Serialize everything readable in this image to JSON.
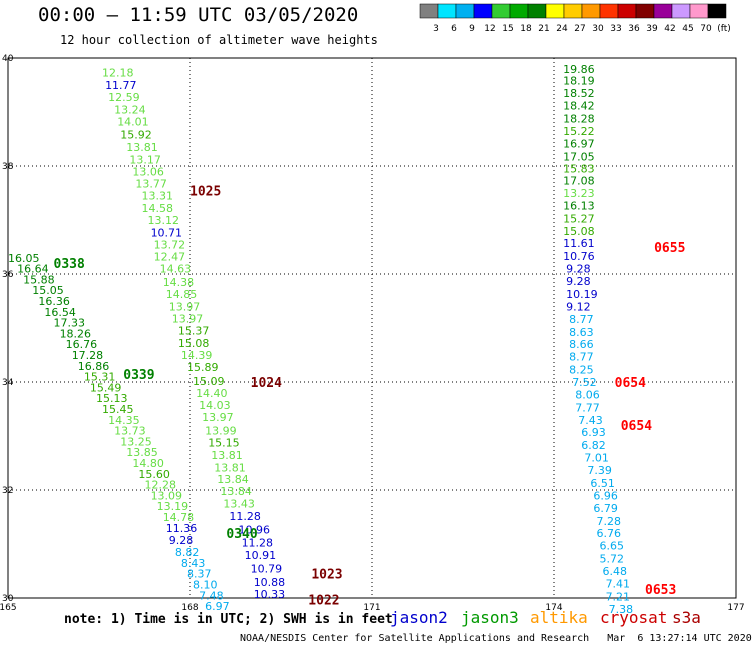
{
  "title": "00:00 – 11:59 UTC 03/05/2020",
  "subtitle": "12 hour collection of altimeter wave heights",
  "colorbar": {
    "colors": [
      "#808080",
      "#00e5ff",
      "#00b0f0",
      "#0000ff",
      "#33cc33",
      "#00aa00",
      "#008000",
      "#ffff00",
      "#ffcc00",
      "#ff9900",
      "#ff3300",
      "#cc0000",
      "#800000",
      "#990099",
      "#cc99ff",
      "#ff99cc",
      "#000000"
    ],
    "labels": [
      "3",
      "6",
      "9",
      "12",
      "15",
      "18",
      "21",
      "24",
      "27",
      "30",
      "33",
      "36",
      "39",
      "42",
      "45",
      "70",
      "(ft)"
    ]
  },
  "note": "note: 1) Time is in UTC; 2) SWH is in feet",
  "satellites": [
    {
      "name": "jason2",
      "color": "#0000cc"
    },
    {
      "name": "jason3",
      "color": "#009900"
    },
    {
      "name": "altika",
      "color": "#ff9900"
    },
    {
      "name": "cryosat",
      "color": "#cc0000"
    },
    {
      "name": "s3a",
      "color": "#aa0000"
    }
  ],
  "credit": "NOAA/NESDIS Center for Satellite Applications and Research   Mar  6 13:27:14 UTC 2020",
  "chart_data": {
    "type": "scatter",
    "xlim": [
      165,
      177
    ],
    "ylim": [
      30,
      40
    ],
    "x_ticks": [
      "165",
      "168",
      "171",
      "174",
      "177"
    ],
    "y_ticks": [
      "30",
      "32",
      "34",
      "36",
      "38",
      "40"
    ],
    "grid": true,
    "time_labels": [
      {
        "text": "1025",
        "lon": 168.0,
        "lat": 37.55,
        "color": "#7a0000"
      },
      {
        "text": "0338",
        "lon": 165.75,
        "lat": 36.2,
        "color": "#008000"
      },
      {
        "text": "0339",
        "lon": 166.9,
        "lat": 34.15,
        "color": "#008000"
      },
      {
        "text": "1024",
        "lon": 169.0,
        "lat": 34.0,
        "color": "#7a0000"
      },
      {
        "text": "0340",
        "lon": 168.6,
        "lat": 31.2,
        "color": "#008000"
      },
      {
        "text": "1023",
        "lon": 170.0,
        "lat": 30.45,
        "color": "#7a0000"
      },
      {
        "text": "1022",
        "lon": 169.95,
        "lat": 29.97,
        "color": "#7a0000"
      },
      {
        "text": "0655",
        "lon": 175.65,
        "lat": 36.5,
        "color": "#ff0000"
      },
      {
        "text": "0654",
        "lon": 175.0,
        "lat": 34.0,
        "color": "#ff0000"
      },
      {
        "text": "0654",
        "lon": 175.1,
        "lat": 33.2,
        "color": "#ff0000"
      },
      {
        "text": "0653",
        "lon": 175.5,
        "lat": 30.17,
        "color": "#ff0000"
      }
    ],
    "tracks": [
      {
        "points": [
          [
            166.55,
            39.73,
            "12.18",
            "#66dd44"
          ],
          [
            166.6,
            39.5,
            "11.77",
            "#0000cc"
          ],
          [
            166.65,
            39.28,
            "12.59",
            "#66dd44"
          ],
          [
            166.75,
            39.05,
            "13.24",
            "#66dd44"
          ],
          [
            166.8,
            38.82,
            "14.01",
            "#66dd44"
          ],
          [
            166.85,
            38.58,
            "15.92",
            "#33aa00"
          ],
          [
            166.95,
            38.35,
            "13.81",
            "#66dd44"
          ],
          [
            167.0,
            38.12,
            "13.17",
            "#66dd44"
          ],
          [
            167.05,
            37.9,
            "13.06",
            "#66dd44"
          ],
          [
            167.1,
            37.68,
            "13.77",
            "#66dd44"
          ],
          [
            167.2,
            37.45,
            "13.31",
            "#66dd44"
          ],
          [
            167.2,
            37.22,
            "14.58",
            "#66dd44"
          ],
          [
            167.3,
            37.0,
            "13.12",
            "#66dd44"
          ],
          [
            167.35,
            36.77,
            "10.71",
            "#0000cc"
          ],
          [
            167.4,
            36.55,
            "13.72",
            "#66dd44"
          ],
          [
            167.4,
            36.32,
            "12.47",
            "#66dd44"
          ],
          [
            167.5,
            36.1,
            "14.63",
            "#66dd44"
          ],
          [
            167.55,
            35.85,
            "14.38",
            "#66dd44"
          ],
          [
            167.6,
            35.63,
            "14.85",
            "#66dd44"
          ],
          [
            167.65,
            35.4,
            "13.97",
            "#66dd44"
          ],
          [
            167.7,
            35.18,
            "13.97",
            "#66dd44"
          ],
          [
            167.8,
            34.95,
            "15.37",
            "#33aa00"
          ],
          [
            167.8,
            34.72,
            "15.08",
            "#33aa00"
          ],
          [
            167.85,
            34.5,
            "14.39",
            "#66dd44"
          ],
          [
            167.95,
            34.28,
            "15.89",
            "#33aa00"
          ],
          [
            168.05,
            34.02,
            "15.09",
            "#33aa00"
          ],
          [
            168.1,
            33.8,
            "14.40",
            "#66dd44"
          ],
          [
            168.15,
            33.57,
            "14.03",
            "#66dd44"
          ],
          [
            168.2,
            33.35,
            "13.97",
            "#66dd44"
          ],
          [
            168.25,
            33.1,
            "13.99",
            "#66dd44"
          ],
          [
            168.3,
            32.88,
            "15.15",
            "#33aa00"
          ],
          [
            168.35,
            32.65,
            "13.81",
            "#66dd44"
          ],
          [
            168.4,
            32.42,
            "13.81",
            "#66dd44"
          ],
          [
            168.45,
            32.2,
            "13.84",
            "#66dd44"
          ],
          [
            168.5,
            31.98,
            "13.84",
            "#66dd44"
          ],
          [
            168.55,
            31.75,
            "13.43",
            "#66dd44"
          ],
          [
            168.65,
            31.52,
            "11.28",
            "#0000cc"
          ],
          [
            168.8,
            31.27,
            "10.96",
            "#0000cc"
          ],
          [
            168.85,
            31.03,
            "11.28",
            "#0000cc"
          ],
          [
            168.9,
            30.8,
            "10.91",
            "#0000cc"
          ],
          [
            169.0,
            30.55,
            "10.79",
            "#0000cc"
          ],
          [
            169.05,
            30.3,
            "10.88",
            "#0000cc"
          ],
          [
            169.05,
            30.07,
            "10.33",
            "#0000cc"
          ]
        ]
      },
      {
        "points": [
          [
            165.0,
            36.3,
            "16.05",
            "#008000"
          ],
          [
            165.15,
            36.1,
            "16.64",
            "#008000"
          ],
          [
            165.25,
            35.9,
            "15.88",
            "#008000"
          ],
          [
            165.4,
            35.7,
            "15.05",
            "#008000"
          ],
          [
            165.5,
            35.5,
            "16.36",
            "#008000"
          ],
          [
            165.6,
            35.3,
            "16.54",
            "#008000"
          ],
          [
            165.75,
            35.1,
            "17.33",
            "#008000"
          ],
          [
            165.85,
            34.9,
            "18.26",
            "#008000"
          ],
          [
            165.95,
            34.7,
            "16.76",
            "#008000"
          ],
          [
            166.05,
            34.5,
            "17.28",
            "#008000"
          ],
          [
            166.15,
            34.3,
            "16.86",
            "#008000"
          ],
          [
            166.25,
            34.1,
            "15.31",
            "#33aa00"
          ],
          [
            166.35,
            33.9,
            "15.49",
            "#33aa00"
          ],
          [
            166.45,
            33.7,
            "15.13",
            "#33aa00"
          ],
          [
            166.55,
            33.5,
            "15.45",
            "#33aa00"
          ],
          [
            166.65,
            33.3,
            "14.35",
            "#66dd44"
          ],
          [
            166.75,
            33.1,
            "13.73",
            "#66dd44"
          ],
          [
            166.85,
            32.9,
            "13.25",
            "#66dd44"
          ],
          [
            166.95,
            32.7,
            "13.85",
            "#66dd44"
          ],
          [
            167.05,
            32.5,
            "14.80",
            "#66dd44"
          ],
          [
            167.15,
            32.3,
            "15.60",
            "#33aa00"
          ],
          [
            167.25,
            32.1,
            "12.28",
            "#66dd44"
          ],
          [
            167.35,
            31.9,
            "13.09",
            "#66dd44"
          ],
          [
            167.45,
            31.7,
            "13.19",
            "#66dd44"
          ],
          [
            167.55,
            31.5,
            "14.78",
            "#66dd44"
          ],
          [
            167.6,
            31.3,
            "11.36",
            "#0000cc"
          ],
          [
            167.65,
            31.07,
            "9.28",
            "#0000cc"
          ],
          [
            167.75,
            30.85,
            "8.82",
            "#00aaee"
          ],
          [
            167.85,
            30.65,
            "8.43",
            "#00aaee"
          ],
          [
            167.95,
            30.45,
            "8.37",
            "#00aaee"
          ],
          [
            168.05,
            30.25,
            "8.10",
            "#00aaee"
          ],
          [
            168.15,
            30.05,
            "7.48",
            "#00aaee"
          ],
          [
            168.25,
            29.85,
            "6.97",
            "#00aaee"
          ]
        ]
      },
      {
        "points": [
          [
            174.15,
            39.8,
            "19.86",
            "#008000"
          ],
          [
            174.15,
            39.58,
            "18.19",
            "#008000"
          ],
          [
            174.15,
            39.35,
            "18.52",
            "#008000"
          ],
          [
            174.15,
            39.12,
            "18.42",
            "#008000"
          ],
          [
            174.15,
            38.88,
            "18.28",
            "#008000"
          ],
          [
            174.15,
            38.65,
            "15.22",
            "#33aa00"
          ],
          [
            174.15,
            38.42,
            "16.97",
            "#008000"
          ],
          [
            174.15,
            38.18,
            "17.05",
            "#008000"
          ],
          [
            174.15,
            37.95,
            "15.83",
            "#33aa00"
          ],
          [
            174.15,
            37.73,
            "17.08",
            "#008000"
          ],
          [
            174.15,
            37.5,
            "13.23",
            "#66dd44"
          ],
          [
            174.15,
            37.27,
            "16.13",
            "#008000"
          ],
          [
            174.15,
            37.03,
            "15.27",
            "#33aa00"
          ],
          [
            174.15,
            36.8,
            "15.08",
            "#33aa00"
          ],
          [
            174.15,
            36.57,
            "11.61",
            "#0000cc"
          ],
          [
            174.15,
            36.33,
            "10.76",
            "#0000cc"
          ],
          [
            174.2,
            36.1,
            "9.28",
            "#0000cc"
          ],
          [
            174.2,
            35.87,
            "9.28",
            "#0000cc"
          ],
          [
            174.2,
            35.63,
            "10.19",
            "#0000cc"
          ],
          [
            174.2,
            35.4,
            "9.12",
            "#0000cc"
          ],
          [
            174.25,
            35.17,
            "8.77",
            "#00aaee"
          ],
          [
            174.25,
            34.93,
            "8.63",
            "#00aaee"
          ],
          [
            174.25,
            34.7,
            "8.66",
            "#00aaee"
          ],
          [
            174.25,
            34.47,
            "8.77",
            "#00aaee"
          ],
          [
            174.25,
            34.23,
            "8.25",
            "#00aaee"
          ],
          [
            174.3,
            34.0,
            "7.52",
            "#00aaee"
          ],
          [
            174.35,
            33.77,
            "8.06",
            "#00aaee"
          ],
          [
            174.35,
            33.53,
            "7.77",
            "#00aaee"
          ],
          [
            174.4,
            33.3,
            "7.43",
            "#00aaee"
          ],
          [
            174.45,
            33.07,
            "6.93",
            "#00aaee"
          ],
          [
            174.45,
            32.83,
            "6.82",
            "#00aaee"
          ],
          [
            174.5,
            32.6,
            "7.01",
            "#00aaee"
          ],
          [
            174.55,
            32.37,
            "7.39",
            "#00aaee"
          ],
          [
            174.6,
            32.13,
            "6.51",
            "#00aaee"
          ],
          [
            174.65,
            31.9,
            "6.96",
            "#00aaee"
          ],
          [
            174.65,
            31.67,
            "6.79",
            "#00aaee"
          ],
          [
            174.7,
            31.43,
            "7.28",
            "#00aaee"
          ],
          [
            174.7,
            31.2,
            "6.76",
            "#00aaee"
          ],
          [
            174.75,
            30.97,
            "6.65",
            "#00aaee"
          ],
          [
            174.75,
            30.73,
            "5.72",
            "#00aaee"
          ],
          [
            174.8,
            30.5,
            "6.48",
            "#00aaee"
          ],
          [
            174.85,
            30.27,
            "7.41",
            "#00aaee"
          ],
          [
            174.85,
            30.03,
            "7.21",
            "#00aaee"
          ],
          [
            174.9,
            29.8,
            "7.38",
            "#00aaee"
          ]
        ]
      }
    ]
  }
}
